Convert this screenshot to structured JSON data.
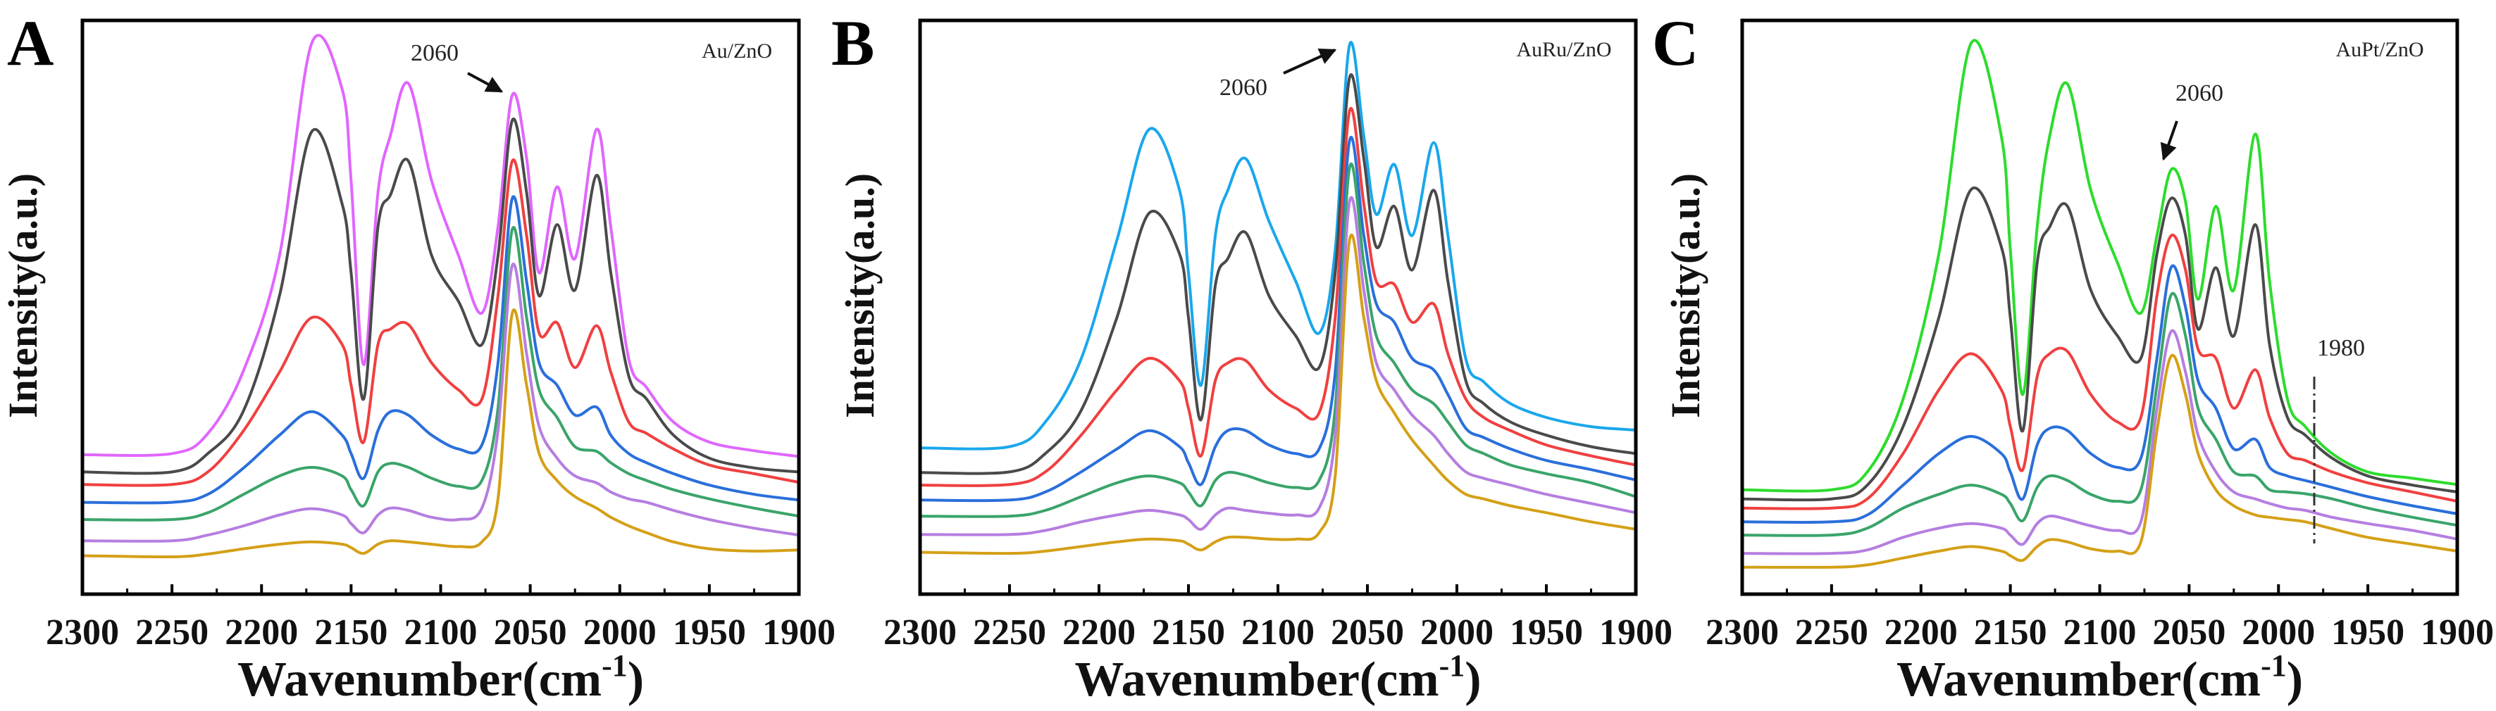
{
  "chart_data": [
    {
      "type": "line",
      "panel_label": "A",
      "sample_label": "Au/ZnO",
      "xlabel": "Wavenumber(cm",
      "xlabel_sup": "-1",
      "xlabel_close": ")",
      "ylabel": "Intensity(a.u.)",
      "xlim": [
        2300,
        1900
      ],
      "x_reversed": true,
      "ylim": [
        0,
        100
      ],
      "y_ticks_shown": false,
      "grid": false,
      "x_ticks": [
        2300,
        2250,
        2200,
        2150,
        2100,
        2050,
        2000,
        1950,
        1900
      ],
      "annotations": [
        {
          "text": "2060",
          "arrow_to_x": 2060
        }
      ],
      "x": [
        2300,
        2250,
        2230,
        2210,
        2190,
        2172,
        2155,
        2150,
        2143,
        2135,
        2128,
        2118,
        2105,
        2090,
        2077,
        2068,
        2060,
        2052,
        2045,
        2035,
        2025,
        2013,
        2005,
        1995,
        1985,
        1970,
        1950,
        1925,
        1900
      ],
      "series": [
        {
          "color": "#e066ff",
          "values": [
            24.3,
            24.5,
            28,
            39,
            59,
            96,
            88,
            72,
            40,
            70,
            80,
            89,
            72,
            59,
            49,
            64,
            87,
            76,
            56,
            71,
            58.5,
            81,
            64,
            41,
            36,
            30,
            26.5,
            25,
            24
          ]
        },
        {
          "color": "#4a4a4a",
          "values": [
            21.3,
            21.3,
            24.5,
            32,
            52,
            80.6,
            68,
            56,
            34,
            64,
            69.6,
            75.5,
            59,
            51,
            43.5,
            59,
            82.6,
            70,
            52,
            64.4,
            53,
            73,
            56,
            38,
            34,
            27.7,
            23.7,
            22,
            21.3
          ]
        },
        {
          "color": "#f04040",
          "values": [
            19.1,
            19.1,
            21.3,
            28.5,
            38.7,
            48.2,
            43.5,
            36.4,
            26.5,
            43.5,
            46.2,
            47,
            40.3,
            35.6,
            34,
            52,
            75.5,
            62.5,
            45.5,
            47.3,
            39.5,
            46.8,
            38.7,
            30,
            28,
            25.3,
            22.5,
            21,
            19.5
          ]
        },
        {
          "color": "#2a6fdb",
          "values": [
            16,
            16,
            17.4,
            22,
            27.7,
            31.8,
            27.7,
            24.5,
            20.2,
            28.5,
            31.8,
            31.2,
            27.7,
            25.3,
            26,
            40.3,
            69,
            54.5,
            40.3,
            36.4,
            31.2,
            32.6,
            27.7,
            24.5,
            22.9,
            21,
            19,
            17.4,
            16.4
          ]
        },
        {
          "color": "#3aa46a",
          "values": [
            13,
            13,
            14.2,
            17.4,
            20.6,
            22.1,
            20.6,
            18.2,
            15.4,
            21.3,
            22.8,
            22.1,
            20.2,
            18.8,
            19.8,
            32.4,
            63.6,
            48.2,
            35.6,
            30.8,
            25.7,
            24.9,
            22.9,
            21,
            19.8,
            18.2,
            16.6,
            15,
            13.6
          ]
        },
        {
          "color": "#b57ee0",
          "values": [
            9.3,
            9.3,
            10.3,
            11.9,
            13.8,
            14.9,
            13.8,
            12.3,
            10.7,
            13.8,
            15,
            14.6,
            13.4,
            13,
            15,
            28.5,
            57.3,
            41.9,
            29.2,
            23.7,
            20.6,
            19.4,
            17.8,
            16.6,
            16,
            14.6,
            13,
            11.5,
            10.3
          ]
        },
        {
          "color": "#d4a017",
          "values": [
            6.7,
            6.5,
            7,
            7.9,
            8.7,
            9.1,
            8.7,
            8.1,
            7.1,
            8.7,
            9.3,
            9.1,
            8.7,
            8.3,
            9.1,
            16.6,
            49,
            36.4,
            24.5,
            19.8,
            17,
            15,
            13.4,
            11.9,
            10.7,
            9.1,
            7.9,
            7.5,
            7.7
          ]
        }
      ]
    },
    {
      "type": "line",
      "panel_label": "B",
      "sample_label": "AuRu/ZnO",
      "xlabel": "Wavenumber(cm",
      "xlabel_sup": "-1",
      "xlabel_close": ")",
      "ylabel": "Intensity(a.u.)",
      "xlim": [
        2300,
        1900
      ],
      "x_reversed": true,
      "ylim": [
        0,
        100
      ],
      "y_ticks_shown": false,
      "grid": false,
      "x_ticks": [
        2300,
        2250,
        2200,
        2150,
        2100,
        2050,
        2000,
        1950,
        1900
      ],
      "annotations": [
        {
          "text": "2060",
          "arrow_to_x": 2060
        }
      ],
      "x": [
        2300,
        2250,
        2230,
        2210,
        2190,
        2172,
        2155,
        2150,
        2143,
        2135,
        2128,
        2118,
        2105,
        2090,
        2077,
        2068,
        2060,
        2052,
        2045,
        2035,
        2025,
        2013,
        2005,
        1995,
        1985,
        1970,
        1950,
        1925,
        1900
      ],
      "series": [
        {
          "color": "#1aa7ec",
          "values": [
            25.5,
            25.7,
            30,
            41,
            61.7,
            81,
            70.4,
            56,
            36.4,
            62.5,
            70.4,
            75.9,
            65,
            54.5,
            45.5,
            60,
            95.7,
            79.8,
            66.2,
            74.9,
            62.5,
            78.7,
            62.5,
            41,
            37,
            33.2,
            30.8,
            29.2,
            28.6
          ]
        },
        {
          "color": "#4a4a4a",
          "values": [
            21.2,
            21.3,
            24.5,
            32,
            48.2,
            66.4,
            59.3,
            48.2,
            30.4,
            53.8,
            58.5,
            63,
            52,
            45,
            39.5,
            56,
            90,
            75.9,
            60.5,
            67.6,
            56.5,
            70.4,
            54.5,
            37.2,
            33.2,
            30,
            27.7,
            25.7,
            24.5
          ]
        },
        {
          "color": "#f04040",
          "values": [
            19,
            19.1,
            21.3,
            27.7,
            35.6,
            41.1,
            37.2,
            32.4,
            24.1,
            37.2,
            40.3,
            40.7,
            35.6,
            32.4,
            31.6,
            48.2,
            84.2,
            68,
            54.5,
            54,
            47.4,
            50.6,
            41.9,
            34,
            30.8,
            28.5,
            26,
            24.1,
            22.5
          ]
        },
        {
          "color": "#2a6fdb",
          "values": [
            16.4,
            16.4,
            17.8,
            21.3,
            25.3,
            28.5,
            25.7,
            22.9,
            19.1,
            25.7,
            28.5,
            28.5,
            26,
            24.5,
            25.3,
            38.7,
            79,
            62.5,
            50.6,
            47.4,
            41.1,
            39.1,
            34.8,
            28.9,
            27.3,
            25.3,
            23.3,
            21.7,
            19.9
          ]
        },
        {
          "color": "#3aa46a",
          "values": [
            13.6,
            13.6,
            14.6,
            17,
            19.4,
            20.6,
            19.4,
            17.8,
            15.4,
            19.8,
            21.2,
            20.7,
            19.4,
            18.6,
            19.8,
            32.4,
            74.3,
            57.7,
            45,
            40.3,
            35.6,
            33.2,
            30,
            26,
            24.5,
            22.5,
            21,
            19.4,
            17
          ]
        },
        {
          "color": "#b57ee0",
          "values": [
            10.4,
            10.4,
            11.1,
            12.6,
            13.8,
            14.6,
            13.8,
            13,
            11.3,
            13.8,
            15,
            14.6,
            14.1,
            13.8,
            15,
            27.7,
            68.4,
            53,
            40.3,
            35.6,
            31.2,
            27.7,
            24.5,
            21.3,
            20.2,
            19,
            17.4,
            15.8,
            14.2
          ]
        },
        {
          "color": "#d4a017",
          "values": [
            7.3,
            7.1,
            7.5,
            8.3,
            9.1,
            9.6,
            9.3,
            8.7,
            7.7,
            9.1,
            9.9,
            9.9,
            9.6,
            9.6,
            10.7,
            20.6,
            61.7,
            48.2,
            37.2,
            31.6,
            26.9,
            22.5,
            19.8,
            17.4,
            16.6,
            15.4,
            14.2,
            12.6,
            11.3
          ]
        }
      ]
    },
    {
      "type": "line",
      "panel_label": "C",
      "sample_label": "AuPt/ZnO",
      "xlabel": "Wavenumber(cm",
      "xlabel_sup": "-1",
      "xlabel_close": ")",
      "ylabel": "Intensity(a.u.)",
      "xlim": [
        2300,
        1900
      ],
      "x_reversed": true,
      "ylim": [
        0,
        100
      ],
      "y_ticks_shown": false,
      "grid": false,
      "x_ticks": [
        2300,
        2250,
        2200,
        2150,
        2100,
        2050,
        2000,
        1950,
        1900
      ],
      "annotations": [
        {
          "text": "2060",
          "arrow_to_x": 2060
        },
        {
          "text": "1980",
          "dashdot_line_x": 1980
        }
      ],
      "x": [
        2300,
        2250,
        2230,
        2210,
        2190,
        2172,
        2155,
        2150,
        2143,
        2135,
        2128,
        2118,
        2105,
        2090,
        2077,
        2068,
        2060,
        2052,
        2045,
        2035,
        2025,
        2013,
        2005,
        1995,
        1985,
        1970,
        1950,
        1925,
        1900
      ],
      "series": [
        {
          "color": "#2ddc2d",
          "values": [
            18.2,
            18.2,
            21.3,
            34,
            59.3,
            96,
            79.8,
            60,
            34.8,
            64,
            79.8,
            88.9,
            70.4,
            57.7,
            49,
            62.5,
            74,
            68.4,
            51.4,
            67.6,
            53,
            80.2,
            54.5,
            34,
            29.2,
            24.5,
            21.3,
            20.2,
            19.1
          ]
        },
        {
          "color": "#4a4a4a",
          "values": [
            16.6,
            16.6,
            19,
            29.2,
            48.2,
            70.5,
            60.5,
            48.2,
            28.5,
            57.7,
            64,
            67.6,
            53,
            45,
            41.1,
            59.3,
            69,
            62.5,
            46.2,
            56.9,
            45,
            64.4,
            43.5,
            30.8,
            27.7,
            23.7,
            20.6,
            19,
            17.8
          ]
        },
        {
          "color": "#f04040",
          "values": [
            15,
            15,
            16.6,
            24.5,
            35.6,
            41.9,
            35.6,
            29.2,
            21.7,
            37.9,
            41.9,
            42.3,
            34.8,
            30,
            30.8,
            52,
            62.5,
            56.5,
            42.7,
            41.1,
            32.4,
            39.1,
            30.8,
            24.5,
            23.3,
            21.3,
            19.4,
            17.8,
            16.2
          ]
        },
        {
          "color": "#2a6fdb",
          "values": [
            12.6,
            12.6,
            13.8,
            19,
            24.5,
            27.5,
            24.5,
            21.3,
            16.6,
            26,
            28.9,
            28.5,
            24.5,
            22.1,
            23.7,
            41.1,
            57,
            50,
            37.2,
            32.4,
            25.3,
            27,
            22.1,
            20.6,
            19.8,
            18.6,
            17,
            15.4,
            14
          ]
        },
        {
          "color": "#3aa46a",
          "values": [
            10.3,
            10.3,
            11.5,
            15,
            17.4,
            19,
            17.4,
            15.8,
            12.8,
            18.6,
            20.6,
            19.8,
            17.4,
            16.2,
            18.2,
            36.4,
            52.2,
            45,
            32.4,
            27,
            21.3,
            20.6,
            18.2,
            17.8,
            17.5,
            16.6,
            15,
            13.4,
            12
          ]
        },
        {
          "color": "#b57ee0",
          "values": [
            7.1,
            7.1,
            7.7,
            9.9,
            11.5,
            12.3,
            11.5,
            10.3,
            8.7,
            12.3,
            13.6,
            13,
            11.9,
            11.1,
            12.6,
            32.4,
            45.8,
            38.7,
            27.7,
            21.3,
            17.8,
            16.6,
            15.8,
            15,
            14.6,
            13.4,
            12.3,
            11.1,
            9.6
          ]
        },
        {
          "color": "#d4a017",
          "values": [
            4.7,
            4.7,
            5.1,
            6.3,
            7.5,
            8.3,
            7.5,
            6.7,
            5.9,
            8.3,
            9.5,
            9.1,
            7.9,
            7.5,
            9.1,
            28.5,
            41.5,
            34.8,
            24.5,
            18.2,
            15.4,
            13.8,
            13.4,
            13,
            12.6,
            11.4,
            9.9,
            8.7,
            7.5
          ]
        }
      ]
    }
  ]
}
